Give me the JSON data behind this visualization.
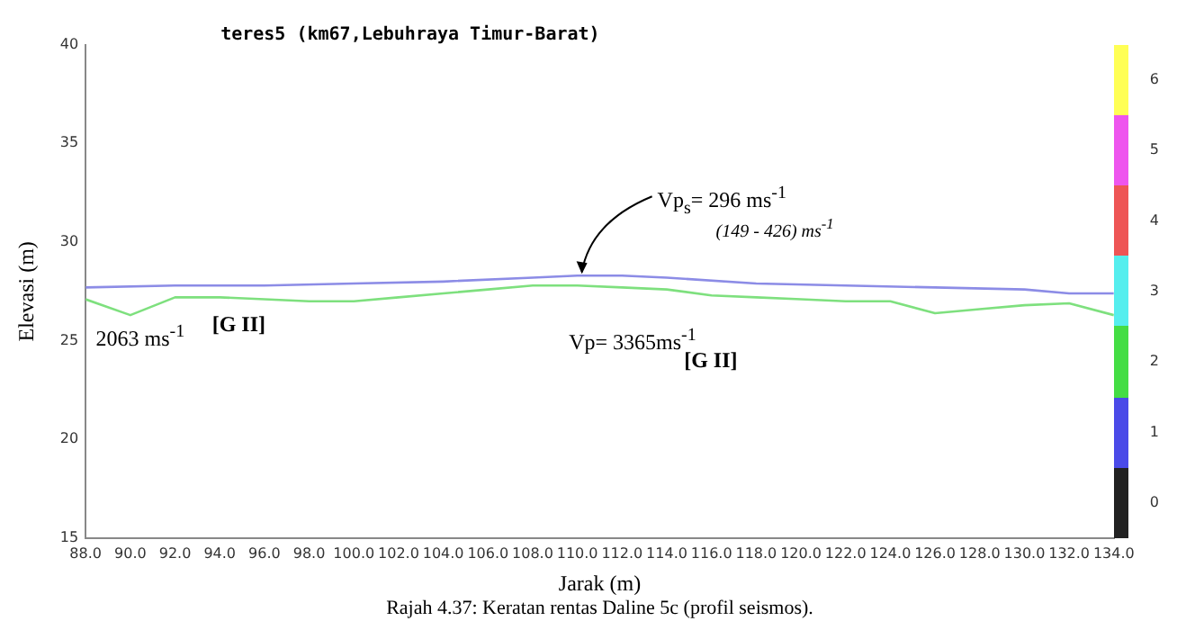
{
  "chart_data": {
    "type": "line",
    "title": "teres5 (km67,Lebuhraya Timur-Barat)",
    "xlabel": "Jarak (m)",
    "ylabel": "Elevasi (m)",
    "series": [
      {
        "color": "#8c8ce6",
        "x": [
          88,
          92,
          96,
          100,
          104,
          108,
          110,
          112,
          114,
          118,
          122,
          126,
          130,
          132,
          134
        ],
        "values": [
          27.7,
          27.8,
          27.8,
          27.9,
          28.0,
          28.2,
          28.3,
          28.3,
          28.2,
          27.9,
          27.8,
          27.7,
          27.6,
          27.4,
          27.4
        ]
      },
      {
        "color": "#7ee07e",
        "x": [
          88,
          90,
          92,
          94,
          96,
          98,
          100,
          102,
          104,
          106,
          108,
          110,
          112,
          114,
          116,
          118,
          120,
          122,
          124,
          126,
          128,
          130,
          132,
          134
        ],
        "values": [
          27.1,
          26.3,
          27.2,
          27.2,
          27.1,
          27.0,
          27.0,
          27.2,
          27.4,
          27.6,
          27.8,
          27.8,
          27.7,
          27.6,
          27.3,
          27.2,
          27.1,
          27.0,
          27.0,
          26.4,
          26.6,
          26.8,
          26.9,
          26.3
        ]
      }
    ],
    "xlim": [
      88,
      134
    ],
    "xticks": [
      {
        "value": 88,
        "label": "88.0"
      },
      {
        "value": 90,
        "label": "90.0"
      },
      {
        "value": 92,
        "label": "92.0"
      },
      {
        "value": 94,
        "label": "94.0"
      },
      {
        "value": 96,
        "label": "96.0"
      },
      {
        "value": 98,
        "label": "98.0"
      },
      {
        "value": 100,
        "label": "100.0"
      },
      {
        "value": 102,
        "label": "102.0"
      },
      {
        "value": 104,
        "label": "104.0"
      },
      {
        "value": 106,
        "label": "106.0"
      },
      {
        "value": 108,
        "label": "108.0"
      },
      {
        "value": 110,
        "label": "110.0"
      },
      {
        "value": 112,
        "label": "112.0"
      },
      {
        "value": 114,
        "label": "114.0"
      },
      {
        "value": 116,
        "label": "116.0"
      },
      {
        "value": 118,
        "label": "118.0"
      },
      {
        "value": 120,
        "label": "120.0"
      },
      {
        "value": 122,
        "label": "122.0"
      },
      {
        "value": 124,
        "label": "124.0"
      },
      {
        "value": 126,
        "label": "126.0"
      },
      {
        "value": 128,
        "label": "128.0"
      },
      {
        "value": 130,
        "label": "130.0"
      },
      {
        "value": 132,
        "label": "132.0"
      },
      {
        "value": 134,
        "label": "134.0"
      }
    ],
    "ylim": [
      15,
      40
    ],
    "yticks": [
      15,
      20,
      25,
      30,
      35,
      40
    ],
    "y2lim": [
      -0.5,
      6.5
    ],
    "y2ticks": [
      0,
      1,
      2,
      3,
      4,
      5,
      6
    ],
    "annotations": [
      {
        "text": "Vp$_{s}$= 296 ms$^{-1}$",
        "x": 110.2,
        "y": 28.3
      },
      "(149 - 426) ms$^{-1}$",
      "2063 ms$^{-1}$",
      "[G II]",
      "Vp= 3365ms$^{-1}$",
      "[G II]",
      "Rajah 4.37:  Keratan rentas Daline 5c (profil seismos)."
    ],
    "grid": false,
    "legend": false,
    "marker": "none",
    "line_style": "solid"
  }
}
